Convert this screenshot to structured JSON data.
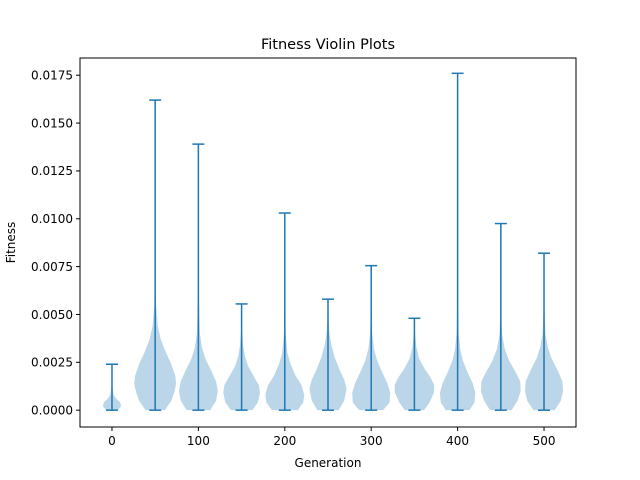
{
  "chart_data": {
    "type": "violin",
    "title": "Fitness Violin Plots",
    "xlabel": "Generation",
    "ylabel": "Fitness",
    "xlim": [
      -37,
      537
    ],
    "ylim": [
      -0.00088,
      0.0184
    ],
    "x_ticks": [
      0,
      100,
      200,
      300,
      400,
      500
    ],
    "x_tick_labels": [
      "0",
      "100",
      "200",
      "300",
      "400",
      "500"
    ],
    "y_ticks": [
      0.0,
      0.0025,
      0.005,
      0.0075,
      0.01,
      0.0125,
      0.015,
      0.0175
    ],
    "y_tick_labels": [
      "0.0000",
      "0.0025",
      "0.0050",
      "0.0075",
      "0.0100",
      "0.0125",
      "0.0150",
      "0.0175"
    ],
    "grid": false,
    "violin_width": 50,
    "colors": {
      "body": "#1f77b4",
      "line": "#1f77b4"
    },
    "generations": [
      {
        "x": 0,
        "min": 0.0,
        "max": 0.0024,
        "profile": [
          [
            0.0,
            0.27
          ],
          [
            0.0002,
            0.42
          ],
          [
            0.0004,
            0.38
          ],
          [
            0.0006,
            0.2
          ],
          [
            0.0008,
            0.08
          ],
          [
            0.0012,
            0.02
          ],
          [
            0.0024,
            0.0
          ]
        ]
      },
      {
        "x": 50,
        "min": 0.0,
        "max": 0.0162,
        "profile": [
          [
            0.0,
            0.45
          ],
          [
            0.0005,
            0.75
          ],
          [
            0.001,
            0.9
          ],
          [
            0.0014,
            0.97
          ],
          [
            0.0018,
            0.93
          ],
          [
            0.0024,
            0.75
          ],
          [
            0.003,
            0.5
          ],
          [
            0.0037,
            0.26
          ],
          [
            0.0044,
            0.12
          ],
          [
            0.0055,
            0.04
          ],
          [
            0.008,
            0.015
          ],
          [
            0.0162,
            0.0
          ]
        ]
      },
      {
        "x": 100,
        "min": 0.0,
        "max": 0.0139,
        "profile": [
          [
            0.0,
            0.55
          ],
          [
            0.0005,
            0.82
          ],
          [
            0.001,
            0.9
          ],
          [
            0.0015,
            0.82
          ],
          [
            0.0021,
            0.58
          ],
          [
            0.0027,
            0.32
          ],
          [
            0.0033,
            0.16
          ],
          [
            0.004,
            0.07
          ],
          [
            0.006,
            0.02
          ],
          [
            0.0139,
            0.0
          ]
        ]
      },
      {
        "x": 150,
        "min": 0.0,
        "max": 0.00555,
        "profile": [
          [
            0.0,
            0.5
          ],
          [
            0.0004,
            0.75
          ],
          [
            0.0009,
            0.85
          ],
          [
            0.0013,
            0.8
          ],
          [
            0.0018,
            0.55
          ],
          [
            0.0023,
            0.3
          ],
          [
            0.0028,
            0.16
          ],
          [
            0.0034,
            0.07
          ],
          [
            0.0042,
            0.025
          ],
          [
            0.00555,
            0.0
          ]
        ]
      },
      {
        "x": 200,
        "min": 0.0,
        "max": 0.0103,
        "profile": [
          [
            0.0,
            0.6
          ],
          [
            0.0004,
            0.85
          ],
          [
            0.0008,
            0.9
          ],
          [
            0.0013,
            0.78
          ],
          [
            0.0018,
            0.5
          ],
          [
            0.0024,
            0.27
          ],
          [
            0.003,
            0.12
          ],
          [
            0.004,
            0.04
          ],
          [
            0.006,
            0.01
          ],
          [
            0.0103,
            0.0
          ]
        ]
      },
      {
        "x": 250,
        "min": 0.0,
        "max": 0.0058,
        "profile": [
          [
            0.0,
            0.5
          ],
          [
            0.0005,
            0.75
          ],
          [
            0.0011,
            0.86
          ],
          [
            0.0016,
            0.75
          ],
          [
            0.0022,
            0.5
          ],
          [
            0.0028,
            0.3
          ],
          [
            0.0034,
            0.16
          ],
          [
            0.004,
            0.07
          ],
          [
            0.0048,
            0.02
          ],
          [
            0.0058,
            0.0
          ]
        ]
      },
      {
        "x": 300,
        "min": 0.0,
        "max": 0.00755,
        "profile": [
          [
            0.0,
            0.55
          ],
          [
            0.0004,
            0.85
          ],
          [
            0.0009,
            0.88
          ],
          [
            0.0014,
            0.75
          ],
          [
            0.002,
            0.5
          ],
          [
            0.0026,
            0.27
          ],
          [
            0.0032,
            0.13
          ],
          [
            0.004,
            0.05
          ],
          [
            0.0055,
            0.015
          ],
          [
            0.00755,
            0.0
          ]
        ]
      },
      {
        "x": 350,
        "min": 0.0,
        "max": 0.0048,
        "profile": [
          [
            0.0,
            0.45
          ],
          [
            0.0004,
            0.7
          ],
          [
            0.0009,
            0.9
          ],
          [
            0.0013,
            0.92
          ],
          [
            0.0017,
            0.75
          ],
          [
            0.0022,
            0.45
          ],
          [
            0.0027,
            0.22
          ],
          [
            0.0033,
            0.09
          ],
          [
            0.004,
            0.03
          ],
          [
            0.0048,
            0.0
          ]
        ]
      },
      {
        "x": 400,
        "min": 0.0,
        "max": 0.0176,
        "profile": [
          [
            0.0,
            0.55
          ],
          [
            0.0004,
            0.78
          ],
          [
            0.0009,
            0.82
          ],
          [
            0.0014,
            0.7
          ],
          [
            0.002,
            0.45
          ],
          [
            0.0026,
            0.24
          ],
          [
            0.0032,
            0.12
          ],
          [
            0.004,
            0.05
          ],
          [
            0.006,
            0.015
          ],
          [
            0.01,
            0.005
          ],
          [
            0.0176,
            0.0
          ]
        ]
      },
      {
        "x": 450,
        "min": 0.0,
        "max": 0.00975,
        "profile": [
          [
            0.0,
            0.5
          ],
          [
            0.0005,
            0.78
          ],
          [
            0.001,
            0.92
          ],
          [
            0.0015,
            0.9
          ],
          [
            0.002,
            0.68
          ],
          [
            0.0026,
            0.38
          ],
          [
            0.0032,
            0.18
          ],
          [
            0.0039,
            0.07
          ],
          [
            0.005,
            0.02
          ],
          [
            0.00975,
            0.0
          ]
        ]
      },
      {
        "x": 500,
        "min": 0.0,
        "max": 0.0082,
        "profile": [
          [
            0.0,
            0.5
          ],
          [
            0.0005,
            0.78
          ],
          [
            0.001,
            0.88
          ],
          [
            0.0015,
            0.85
          ],
          [
            0.0021,
            0.62
          ],
          [
            0.0027,
            0.35
          ],
          [
            0.0033,
            0.17
          ],
          [
            0.004,
            0.07
          ],
          [
            0.0052,
            0.02
          ],
          [
            0.0082,
            0.0
          ]
        ]
      }
    ]
  }
}
